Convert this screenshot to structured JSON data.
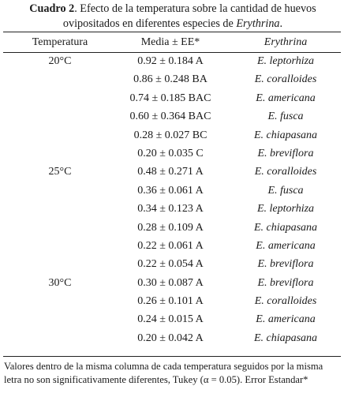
{
  "caption": {
    "label": "Cuadro 2",
    "text_before": ". Efecto de la temperatura sobre la cantidad de huevos ovipositados en diferentes especies de ",
    "genus": "Erythrina",
    "text_after": "."
  },
  "headers": {
    "temp": "Temperatura",
    "media": "Media ± EE*",
    "species": "Erythrina"
  },
  "rows": [
    {
      "temp": "20°C",
      "media": "0.92 ± 0.184 A",
      "species": "E. leptorhiza"
    },
    {
      "temp": "",
      "media": "0.86 ± 0.248 BA",
      "species": "E. coralloides"
    },
    {
      "temp": "",
      "media": "0.74 ± 0.185 BAC",
      "species": "E. americana"
    },
    {
      "temp": "",
      "media": "0.60 ± 0.364 BAC",
      "species": "E. fusca"
    },
    {
      "temp": "",
      "media": "0.28 ± 0.027 BC",
      "species": "E. chiapasana"
    },
    {
      "temp": "",
      "media": "0.20 ± 0.035 C",
      "species": "E. breviflora"
    },
    {
      "temp": "25°C",
      "media": "0.48 ± 0.271 A",
      "species": "E. coralloides"
    },
    {
      "temp": "",
      "media": "0.36 ± 0.061 A",
      "species": "E. fusca"
    },
    {
      "temp": "",
      "media": "0.34 ± 0.123 A",
      "species": "E. leptorhiza"
    },
    {
      "temp": "",
      "media": "0.28 ± 0.109 A",
      "species": "E. chiapasana"
    },
    {
      "temp": "",
      "media": "0.22 ± 0.061 A",
      "species": "E. americana"
    },
    {
      "temp": "",
      "media": "0.22 ± 0.054 A",
      "species": "E. breviflora"
    },
    {
      "temp": "30°C",
      "media": "0.30 ± 0.087 A",
      "species": "E. breviflora"
    },
    {
      "temp": "",
      "media": "0.26 ± 0.101 A",
      "species": "E. coralloides"
    },
    {
      "temp": "",
      "media": "0.24 ± 0.015 A",
      "species": "E. americana"
    },
    {
      "temp": "",
      "media": "0.20 ± 0.042 A",
      "species": "E. chiapasana"
    }
  ],
  "footnote": "Valores dentro de la misma columna de cada temperatura seguidos por la misma letra no son significativamente diferentes, Tukey (α = 0.05). Error Estandar*"
}
